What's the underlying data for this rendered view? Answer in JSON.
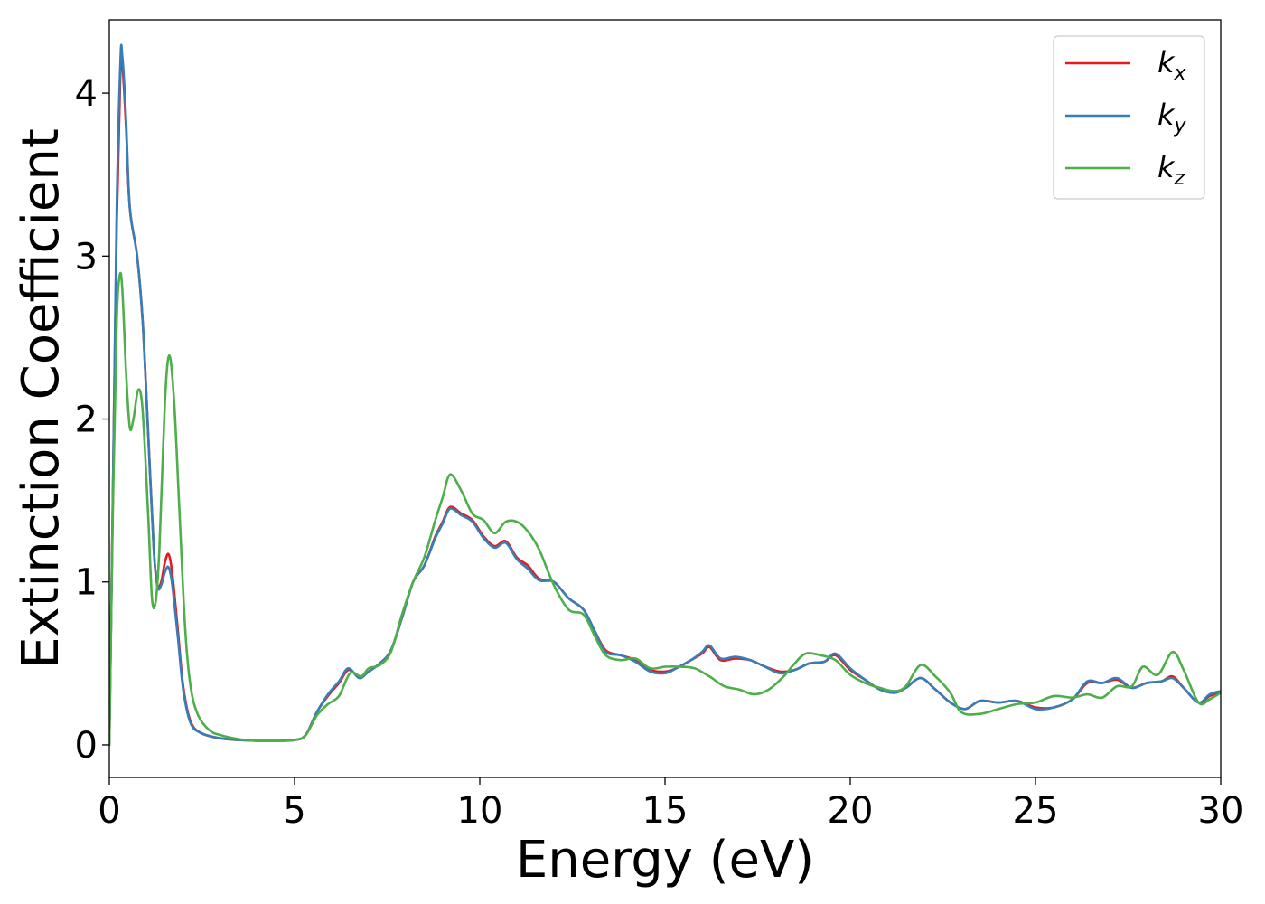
{
  "chart_data": {
    "type": "line",
    "xlabel": "Energy (eV)",
    "ylabel": "Extinction Coefficient",
    "xlim": [
      0,
      30
    ],
    "ylim": [
      -0.2,
      4.45
    ],
    "xticks": [
      "0",
      "5",
      "10",
      "15",
      "20",
      "25",
      "30"
    ],
    "yticks": [
      "0",
      "1",
      "2",
      "3",
      "4"
    ],
    "grid": false,
    "legend_position": "top-right",
    "series": [
      {
        "name": "k",
        "sub": "x",
        "color": "#e41a1c",
        "points": [
          [
            0,
            0
          ],
          [
            0.1,
            1.6
          ],
          [
            0.2,
            3.2
          ],
          [
            0.3,
            4.15
          ],
          [
            0.35,
            4.18
          ],
          [
            0.45,
            3.8
          ],
          [
            0.55,
            3.3
          ],
          [
            0.75,
            3.0
          ],
          [
            0.9,
            2.6
          ],
          [
            1.05,
            1.9
          ],
          [
            1.2,
            1.2
          ],
          [
            1.3,
            0.98
          ],
          [
            1.4,
            1.0
          ],
          [
            1.5,
            1.12
          ],
          [
            1.6,
            1.17
          ],
          [
            1.7,
            1.05
          ],
          [
            1.85,
            0.7
          ],
          [
            2.0,
            0.35
          ],
          [
            2.2,
            0.14
          ],
          [
            2.5,
            0.07
          ],
          [
            3.0,
            0.04
          ],
          [
            3.5,
            0.03
          ],
          [
            4.0,
            0.025
          ],
          [
            4.5,
            0.025
          ],
          [
            5.0,
            0.03
          ],
          [
            5.3,
            0.06
          ],
          [
            5.6,
            0.2
          ],
          [
            5.9,
            0.3
          ],
          [
            6.2,
            0.38
          ],
          [
            6.45,
            0.46
          ],
          [
            6.75,
            0.42
          ],
          [
            7.0,
            0.45
          ],
          [
            7.3,
            0.5
          ],
          [
            7.6,
            0.58
          ],
          [
            7.9,
            0.78
          ],
          [
            8.2,
            1.0
          ],
          [
            8.5,
            1.1
          ],
          [
            8.8,
            1.28
          ],
          [
            9.0,
            1.37
          ],
          [
            9.2,
            1.46
          ],
          [
            9.5,
            1.42
          ],
          [
            9.8,
            1.38
          ],
          [
            10.1,
            1.28
          ],
          [
            10.4,
            1.22
          ],
          [
            10.7,
            1.25
          ],
          [
            11.0,
            1.15
          ],
          [
            11.3,
            1.1
          ],
          [
            11.6,
            1.02
          ],
          [
            12.0,
            1.0
          ],
          [
            12.4,
            0.9
          ],
          [
            12.8,
            0.83
          ],
          [
            13.1,
            0.7
          ],
          [
            13.4,
            0.58
          ],
          [
            13.8,
            0.55
          ],
          [
            14.2,
            0.52
          ],
          [
            14.6,
            0.46
          ],
          [
            15.0,
            0.45
          ],
          [
            15.3,
            0.47
          ],
          [
            15.7,
            0.52
          ],
          [
            16.0,
            0.56
          ],
          [
            16.2,
            0.6
          ],
          [
            16.5,
            0.52
          ],
          [
            16.9,
            0.53
          ],
          [
            17.3,
            0.52
          ],
          [
            17.7,
            0.48
          ],
          [
            18.1,
            0.45
          ],
          [
            18.5,
            0.46
          ],
          [
            18.9,
            0.5
          ],
          [
            19.3,
            0.51
          ],
          [
            19.6,
            0.55
          ],
          [
            20.0,
            0.46
          ],
          [
            20.4,
            0.4
          ],
          [
            20.8,
            0.34
          ],
          [
            21.2,
            0.32
          ],
          [
            21.5,
            0.35
          ],
          [
            21.9,
            0.41
          ],
          [
            22.3,
            0.34
          ],
          [
            22.7,
            0.26
          ],
          [
            23.1,
            0.22
          ],
          [
            23.5,
            0.27
          ],
          [
            24.0,
            0.26
          ],
          [
            24.5,
            0.27
          ],
          [
            25.0,
            0.23
          ],
          [
            25.5,
            0.23
          ],
          [
            26.0,
            0.28
          ],
          [
            26.4,
            0.38
          ],
          [
            26.8,
            0.38
          ],
          [
            27.2,
            0.4
          ],
          [
            27.6,
            0.35
          ],
          [
            28.0,
            0.38
          ],
          [
            28.4,
            0.39
          ],
          [
            28.7,
            0.42
          ],
          [
            29.0,
            0.35
          ],
          [
            29.4,
            0.26
          ],
          [
            29.7,
            0.3
          ],
          [
            30.0,
            0.32
          ]
        ]
      },
      {
        "name": "k",
        "sub": "y",
        "color": "#377eb8",
        "points": [
          [
            0,
            0
          ],
          [
            0.1,
            1.6
          ],
          [
            0.2,
            3.3
          ],
          [
            0.3,
            4.2
          ],
          [
            0.35,
            4.23
          ],
          [
            0.45,
            3.85
          ],
          [
            0.55,
            3.3
          ],
          [
            0.75,
            3.0
          ],
          [
            0.9,
            2.6
          ],
          [
            1.05,
            1.9
          ],
          [
            1.2,
            1.2
          ],
          [
            1.3,
            0.97
          ],
          [
            1.4,
            0.98
          ],
          [
            1.5,
            1.06
          ],
          [
            1.6,
            1.09
          ],
          [
            1.7,
            0.98
          ],
          [
            1.85,
            0.66
          ],
          [
            2.0,
            0.33
          ],
          [
            2.2,
            0.13
          ],
          [
            2.5,
            0.07
          ],
          [
            3.0,
            0.04
          ],
          [
            3.5,
            0.03
          ],
          [
            4.0,
            0.025
          ],
          [
            4.5,
            0.025
          ],
          [
            5.0,
            0.03
          ],
          [
            5.3,
            0.06
          ],
          [
            5.6,
            0.2
          ],
          [
            5.9,
            0.31
          ],
          [
            6.2,
            0.39
          ],
          [
            6.45,
            0.47
          ],
          [
            6.75,
            0.41
          ],
          [
            7.0,
            0.45
          ],
          [
            7.3,
            0.5
          ],
          [
            7.6,
            0.58
          ],
          [
            7.9,
            0.78
          ],
          [
            8.2,
            1.0
          ],
          [
            8.5,
            1.1
          ],
          [
            8.8,
            1.27
          ],
          [
            9.0,
            1.36
          ],
          [
            9.2,
            1.45
          ],
          [
            9.5,
            1.41
          ],
          [
            9.8,
            1.37
          ],
          [
            10.1,
            1.27
          ],
          [
            10.4,
            1.21
          ],
          [
            10.7,
            1.24
          ],
          [
            11.0,
            1.14
          ],
          [
            11.3,
            1.08
          ],
          [
            11.6,
            1.01
          ],
          [
            12.0,
            1.0
          ],
          [
            12.4,
            0.9
          ],
          [
            12.8,
            0.83
          ],
          [
            13.1,
            0.7
          ],
          [
            13.4,
            0.57
          ],
          [
            13.8,
            0.55
          ],
          [
            14.2,
            0.51
          ],
          [
            14.6,
            0.45
          ],
          [
            15.0,
            0.44
          ],
          [
            15.3,
            0.47
          ],
          [
            15.7,
            0.52
          ],
          [
            16.0,
            0.57
          ],
          [
            16.2,
            0.61
          ],
          [
            16.5,
            0.53
          ],
          [
            16.9,
            0.54
          ],
          [
            17.3,
            0.52
          ],
          [
            17.7,
            0.48
          ],
          [
            18.1,
            0.44
          ],
          [
            18.5,
            0.46
          ],
          [
            18.9,
            0.5
          ],
          [
            19.3,
            0.51
          ],
          [
            19.6,
            0.56
          ],
          [
            20.0,
            0.47
          ],
          [
            20.4,
            0.4
          ],
          [
            20.8,
            0.34
          ],
          [
            21.2,
            0.32
          ],
          [
            21.5,
            0.35
          ],
          [
            21.9,
            0.41
          ],
          [
            22.3,
            0.34
          ],
          [
            22.7,
            0.26
          ],
          [
            23.1,
            0.22
          ],
          [
            23.5,
            0.27
          ],
          [
            24.0,
            0.26
          ],
          [
            24.5,
            0.27
          ],
          [
            25.0,
            0.22
          ],
          [
            25.5,
            0.23
          ],
          [
            26.0,
            0.28
          ],
          [
            26.4,
            0.39
          ],
          [
            26.8,
            0.38
          ],
          [
            27.2,
            0.41
          ],
          [
            27.6,
            0.35
          ],
          [
            28.0,
            0.38
          ],
          [
            28.4,
            0.39
          ],
          [
            28.7,
            0.41
          ],
          [
            29.0,
            0.35
          ],
          [
            29.4,
            0.26
          ],
          [
            29.7,
            0.31
          ],
          [
            30.0,
            0.33
          ]
        ]
      },
      {
        "name": "k",
        "sub": "z",
        "color": "#4daf4a",
        "points": [
          [
            0,
            0
          ],
          [
            0.1,
            1.5
          ],
          [
            0.2,
            2.6
          ],
          [
            0.28,
            2.88
          ],
          [
            0.35,
            2.8
          ],
          [
            0.45,
            2.3
          ],
          [
            0.55,
            1.95
          ],
          [
            0.65,
            2.0
          ],
          [
            0.78,
            2.18
          ],
          [
            0.9,
            2.05
          ],
          [
            1.05,
            1.4
          ],
          [
            1.15,
            0.9
          ],
          [
            1.25,
            0.88
          ],
          [
            1.35,
            1.2
          ],
          [
            1.5,
            2.1
          ],
          [
            1.62,
            2.39
          ],
          [
            1.75,
            2.1
          ],
          [
            1.9,
            1.4
          ],
          [
            2.05,
            0.7
          ],
          [
            2.2,
            0.35
          ],
          [
            2.4,
            0.18
          ],
          [
            2.7,
            0.09
          ],
          [
            3.0,
            0.06
          ],
          [
            3.5,
            0.035
          ],
          [
            4.0,
            0.025
          ],
          [
            4.5,
            0.025
          ],
          [
            5.0,
            0.03
          ],
          [
            5.3,
            0.06
          ],
          [
            5.6,
            0.18
          ],
          [
            5.9,
            0.25
          ],
          [
            6.2,
            0.3
          ],
          [
            6.5,
            0.44
          ],
          [
            6.8,
            0.42
          ],
          [
            7.0,
            0.47
          ],
          [
            7.3,
            0.49
          ],
          [
            7.6,
            0.57
          ],
          [
            7.9,
            0.8
          ],
          [
            8.2,
            1.0
          ],
          [
            8.5,
            1.15
          ],
          [
            8.8,
            1.38
          ],
          [
            9.0,
            1.52
          ],
          [
            9.2,
            1.66
          ],
          [
            9.5,
            1.56
          ],
          [
            9.8,
            1.42
          ],
          [
            10.1,
            1.38
          ],
          [
            10.4,
            1.3
          ],
          [
            10.7,
            1.37
          ],
          [
            11.0,
            1.37
          ],
          [
            11.3,
            1.31
          ],
          [
            11.6,
            1.2
          ],
          [
            12.0,
            0.98
          ],
          [
            12.4,
            0.83
          ],
          [
            12.8,
            0.8
          ],
          [
            13.1,
            0.67
          ],
          [
            13.4,
            0.55
          ],
          [
            13.8,
            0.52
          ],
          [
            14.2,
            0.53
          ],
          [
            14.6,
            0.47
          ],
          [
            15.0,
            0.48
          ],
          [
            15.4,
            0.48
          ],
          [
            15.8,
            0.47
          ],
          [
            16.2,
            0.42
          ],
          [
            16.6,
            0.36
          ],
          [
            17.0,
            0.34
          ],
          [
            17.4,
            0.31
          ],
          [
            17.8,
            0.34
          ],
          [
            18.2,
            0.42
          ],
          [
            18.5,
            0.5
          ],
          [
            18.8,
            0.56
          ],
          [
            19.2,
            0.55
          ],
          [
            19.6,
            0.52
          ],
          [
            20.0,
            0.43
          ],
          [
            20.4,
            0.38
          ],
          [
            20.8,
            0.35
          ],
          [
            21.2,
            0.33
          ],
          [
            21.5,
            0.36
          ],
          [
            21.9,
            0.49
          ],
          [
            22.3,
            0.42
          ],
          [
            22.7,
            0.32
          ],
          [
            23.0,
            0.2
          ],
          [
            23.5,
            0.19
          ],
          [
            24.0,
            0.22
          ],
          [
            24.5,
            0.25
          ],
          [
            25.0,
            0.26
          ],
          [
            25.5,
            0.3
          ],
          [
            26.0,
            0.29
          ],
          [
            26.4,
            0.31
          ],
          [
            26.8,
            0.29
          ],
          [
            27.2,
            0.36
          ],
          [
            27.6,
            0.36
          ],
          [
            27.9,
            0.48
          ],
          [
            28.3,
            0.43
          ],
          [
            28.7,
            0.57
          ],
          [
            29.0,
            0.46
          ],
          [
            29.4,
            0.26
          ],
          [
            29.7,
            0.28
          ],
          [
            30.0,
            0.32
          ]
        ]
      }
    ]
  }
}
